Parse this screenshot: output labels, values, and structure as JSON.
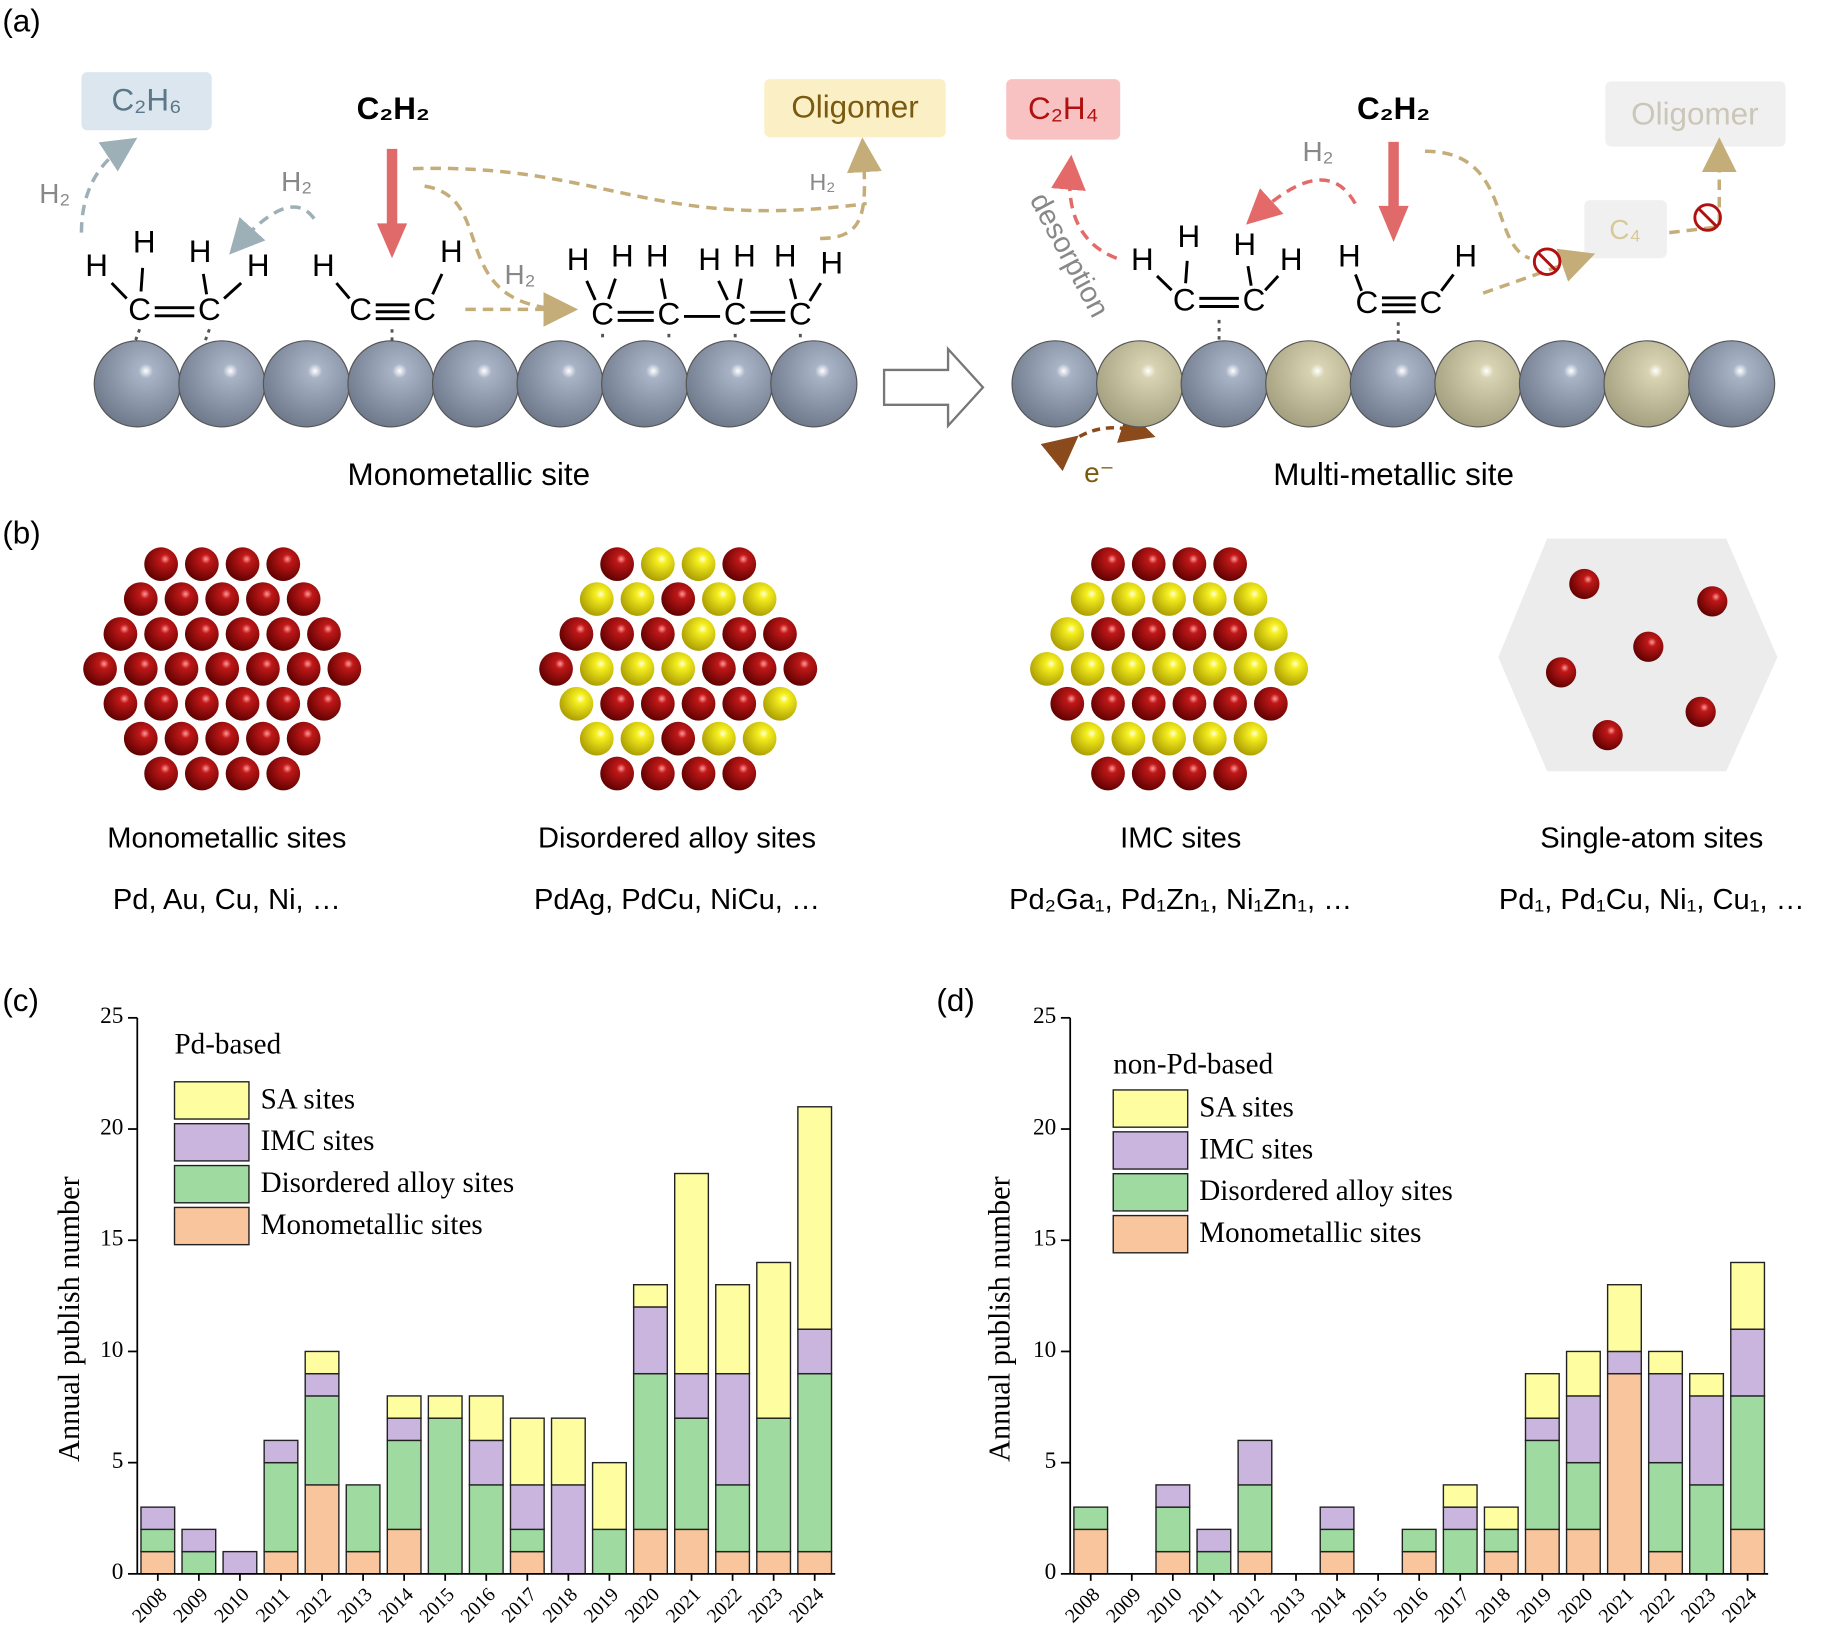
{
  "panel_a": {
    "label": "(a)",
    "ethane": "C₂H₆",
    "acetylene_left": "C₂H₂",
    "oligomer_left": "Oligomer",
    "h2_left": [
      "H₂",
      "H₂",
      "H₂",
      "H₂"
    ],
    "site_left": "Monometallic site",
    "ethylene": "C₂H₄",
    "acetylene_right": "C₂H₂",
    "h2_right": "H₂",
    "desorption": "desorption",
    "c4": "C₄",
    "oligomer_right": "Oligomer",
    "electron": "e⁻",
    "site_right": "Multi-metallic site",
    "atoms": [
      "H",
      "H",
      "H",
      "H",
      "C",
      "C",
      "H",
      "C",
      "C",
      "H",
      "H",
      "H",
      "H",
      "H",
      "H",
      "H",
      "H",
      "C",
      "C",
      "C",
      "C",
      "H",
      "H",
      "H",
      "H",
      "C",
      "C",
      "H",
      "C",
      "C",
      "H"
    ]
  },
  "panel_b": {
    "label": "(b)",
    "sites": [
      {
        "name": "Monometallic sites",
        "examples": "Pd, Au, Cu, Ni, …"
      },
      {
        "name": "Disordered alloy sites",
        "examples": "PdAg, PdCu, NiCu, …"
      },
      {
        "name": "IMC sites",
        "examples": "Pd₂Ga₁, Pd₁Zn₁, Ni₁Zn₁, …"
      },
      {
        "name": "Single-atom sites",
        "examples": "Pd₁, Pd₁Cu, Ni₁, Cu₁, …"
      }
    ]
  },
  "chart_data": [
    {
      "type": "bar",
      "stacked": true,
      "panel_label": "(c)",
      "legend_title": "Pd-based",
      "y_label": "Annual publish number",
      "categories": [
        "2008",
        "2009",
        "2010",
        "2011",
        "2012",
        "2013",
        "2014",
        "2015",
        "2016",
        "2017",
        "2018",
        "2019",
        "2020",
        "2021",
        "2022",
        "2023",
        "2024"
      ],
      "series": [
        {
          "name": "Monometallic sites",
          "color": "#f9c59d",
          "values": [
            1,
            0,
            0,
            1,
            4,
            1,
            2,
            0,
            0,
            1,
            0,
            0,
            2,
            2,
            1,
            1,
            1
          ]
        },
        {
          "name": "Disordered alloy sites",
          "color": "#9fdba0",
          "values": [
            1,
            1,
            0,
            4,
            4,
            3,
            4,
            7,
            4,
            1,
            0,
            2,
            7,
            5,
            3,
            6,
            8
          ]
        },
        {
          "name": "IMC sites",
          "color": "#c9b5dd",
          "values": [
            1,
            1,
            1,
            1,
            1,
            0,
            1,
            0,
            2,
            2,
            4,
            0,
            3,
            2,
            5,
            0,
            2
          ]
        },
        {
          "name": "SA sites",
          "color": "#fefea0",
          "values": [
            0,
            0,
            0,
            0,
            1,
            0,
            1,
            1,
            2,
            3,
            3,
            3,
            1,
            9,
            4,
            7,
            10
          ]
        }
      ],
      "ylim": [
        0,
        25
      ],
      "yticks": [
        0,
        5,
        10,
        15,
        20,
        25
      ]
    },
    {
      "type": "bar",
      "stacked": true,
      "panel_label": "(d)",
      "legend_title": "non-Pd-based",
      "y_label": "Annual publish number",
      "categories": [
        "2008",
        "2009",
        "2010",
        "2011",
        "2012",
        "2013",
        "2014",
        "2015",
        "2016",
        "2017",
        "2018",
        "2019",
        "2020",
        "2021",
        "2022",
        "2023",
        "2024"
      ],
      "series": [
        {
          "name": "Monometallic sites",
          "color": "#f9c59d",
          "values": [
            2,
            0,
            1,
            0,
            1,
            0,
            1,
            0,
            1,
            0,
            1,
            2,
            2,
            9,
            1,
            0,
            2
          ]
        },
        {
          "name": "Disordered alloy sites",
          "color": "#9fdba0",
          "values": [
            1,
            0,
            2,
            1,
            3,
            0,
            1,
            0,
            1,
            2,
            1,
            4,
            3,
            0,
            4,
            4,
            6
          ]
        },
        {
          "name": "IMC sites",
          "color": "#c9b5dd",
          "values": [
            0,
            0,
            1,
            1,
            2,
            0,
            1,
            0,
            0,
            1,
            0,
            1,
            3,
            1,
            4,
            4,
            3
          ]
        },
        {
          "name": "SA sites",
          "color": "#fefea0",
          "values": [
            0,
            0,
            0,
            0,
            0,
            0,
            0,
            0,
            0,
            1,
            1,
            2,
            2,
            3,
            1,
            1,
            3
          ]
        }
      ],
      "ylim": [
        0,
        25
      ],
      "yticks": [
        0,
        5,
        10,
        15,
        20,
        25
      ]
    }
  ]
}
